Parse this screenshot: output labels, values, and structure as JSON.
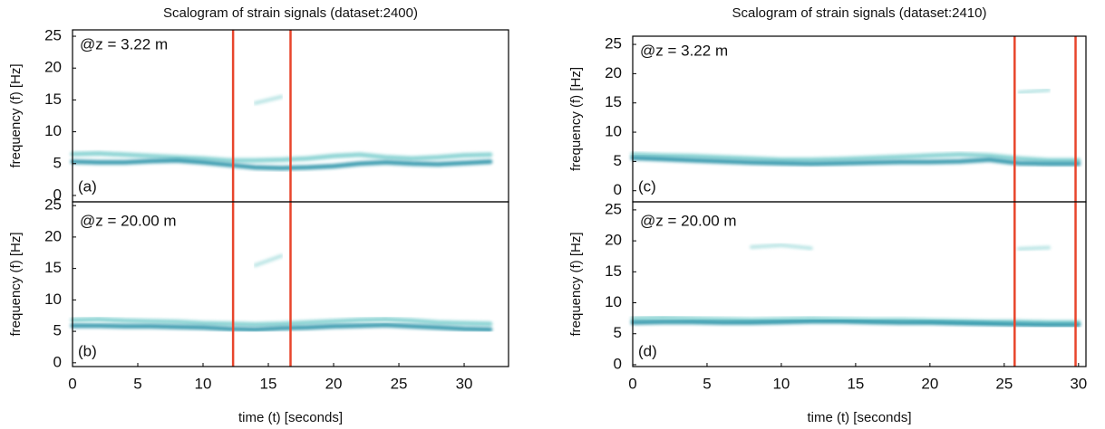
{
  "chart_data": [
    {
      "type": "line",
      "title": "Scalogram of strain signals (dataset:2400)",
      "annotation": "@z = 3.22 m",
      "panel_label": "(a)",
      "ylabel": "frequency (f) [Hz]",
      "x": [
        0,
        2,
        4,
        6,
        8,
        10,
        12,
        14,
        16,
        18,
        20,
        22,
        24,
        26,
        28,
        30,
        32
      ],
      "series": [
        {
          "color": "#7fcfcf",
          "values": [
            6.5,
            6.6,
            6.4,
            6.2,
            6.0,
            5.8,
            5.5,
            5.5,
            5.6,
            5.8,
            6.2,
            6.4,
            6.0,
            5.8,
            6.0,
            6.3,
            6.4
          ]
        },
        {
          "color": "#2a93a8",
          "values": [
            5.3,
            5.2,
            5.2,
            5.4,
            5.5,
            5.2,
            4.8,
            4.4,
            4.3,
            4.4,
            4.6,
            5.0,
            5.2,
            5.0,
            4.9,
            5.1,
            5.3
          ]
        },
        {
          "color": "#a8dede",
          "values": [
            null,
            null,
            null,
            null,
            null,
            null,
            null,
            14.5,
            15.5,
            null,
            null,
            null,
            null,
            null,
            null,
            null,
            null
          ]
        }
      ],
      "vlines": [
        12.3,
        16.7
      ],
      "vline_color": "#e8452c",
      "xlim": [
        0,
        33.4
      ],
      "ylim": [
        -1,
        26
      ],
      "yticks": [
        0,
        5,
        10,
        15,
        20,
        25
      ]
    },
    {
      "type": "line",
      "annotation": "@z = 20.00 m",
      "panel_label": "(b)",
      "ylabel": "frequency (f) [Hz]",
      "xlabel": "time (t) [seconds]",
      "x": [
        0,
        2,
        4,
        6,
        8,
        10,
        12,
        14,
        16,
        18,
        20,
        22,
        24,
        26,
        28,
        30,
        32
      ],
      "series": [
        {
          "color": "#7fcfcf",
          "values": [
            6.8,
            6.9,
            6.7,
            6.6,
            6.5,
            6.3,
            6.2,
            6.1,
            6.2,
            6.4,
            6.6,
            6.8,
            6.9,
            6.7,
            6.4,
            6.3,
            6.2
          ]
        },
        {
          "color": "#2a93a8",
          "values": [
            5.9,
            5.9,
            5.8,
            5.8,
            5.7,
            5.6,
            5.4,
            5.3,
            5.5,
            5.6,
            5.8,
            5.9,
            6.0,
            5.8,
            5.6,
            5.4,
            5.3
          ]
        },
        {
          "color": "#a8dede",
          "values": [
            null,
            null,
            null,
            null,
            null,
            null,
            null,
            15.5,
            17.0,
            null,
            null,
            null,
            null,
            null,
            null,
            null,
            null
          ]
        }
      ],
      "vlines": [
        12.3,
        16.7
      ],
      "vline_color": "#e8452c",
      "xlim": [
        0,
        33.4
      ],
      "ylim": [
        -0.6,
        25.6
      ],
      "xticks": [
        0,
        5,
        10,
        15,
        20,
        25,
        30
      ],
      "yticks": [
        0,
        5,
        10,
        15,
        20,
        25
      ]
    },
    {
      "type": "line",
      "title": "Scalogram of strain signals (dataset:2410)",
      "annotation": "@z = 3.22 m",
      "panel_label": "(c)",
      "ylabel": "frequency (f) [Hz]",
      "x": [
        0,
        2,
        4,
        6,
        8,
        10,
        12,
        14,
        16,
        18,
        20,
        22,
        24,
        26,
        28,
        30
      ],
      "series": [
        {
          "color": "#7fcfcf",
          "values": [
            6.2,
            6.0,
            5.9,
            5.7,
            5.5,
            5.3,
            5.3,
            5.4,
            5.6,
            5.8,
            6.0,
            6.2,
            6.0,
            5.5,
            5.2,
            5.2
          ]
        },
        {
          "color": "#2a93a8",
          "values": [
            5.6,
            5.4,
            5.2,
            5.0,
            4.8,
            4.7,
            4.6,
            4.7,
            4.8,
            4.9,
            4.9,
            5.0,
            5.3,
            4.7,
            4.6,
            4.6
          ]
        },
        {
          "color": "#a8dede",
          "values": [
            null,
            null,
            null,
            null,
            null,
            null,
            null,
            null,
            null,
            null,
            null,
            null,
            null,
            16.8,
            17.2,
            null
          ]
        }
      ],
      "vlines": [
        25.7,
        29.8
      ],
      "vline_color": "#e8452c",
      "xlim": [
        0,
        30.5
      ],
      "ylim": [
        -1.9,
        26.4
      ],
      "yticks": [
        0,
        5,
        10,
        15,
        20,
        25
      ]
    },
    {
      "type": "line",
      "annotation": "@z = 20.00 m",
      "panel_label": "(d)",
      "ylabel": "frequency (f) [Hz]",
      "xlabel": "time (t) [seconds]",
      "x": [
        0,
        2,
        4,
        6,
        8,
        10,
        12,
        14,
        16,
        18,
        20,
        22,
        24,
        26,
        28,
        30
      ],
      "series": [
        {
          "color": "#7fcfcf",
          "values": [
            7.4,
            7.5,
            7.4,
            7.3,
            7.2,
            7.3,
            7.4,
            7.3,
            7.2,
            7.2,
            7.1,
            7.0,
            6.9,
            6.9,
            6.8,
            6.8
          ]
        },
        {
          "color": "#2a93a8",
          "values": [
            6.8,
            6.9,
            6.9,
            6.8,
            6.8,
            6.9,
            7.0,
            7.0,
            6.9,
            6.8,
            6.8,
            6.7,
            6.6,
            6.5,
            6.4,
            6.4
          ]
        },
        {
          "color": "#a8dede",
          "values": [
            null,
            null,
            null,
            null,
            19.0,
            19.3,
            18.8,
            null,
            null,
            null,
            null,
            null,
            null,
            18.7,
            18.9,
            null
          ]
        }
      ],
      "vlines": [
        25.7,
        29.8
      ],
      "vline_color": "#e8452c",
      "xlim": [
        0,
        30.5
      ],
      "ylim": [
        -0.3,
        26.3
      ],
      "xticks": [
        0,
        5,
        10,
        15,
        20,
        25,
        30
      ],
      "yticks": [
        0,
        5,
        10,
        15,
        20,
        25
      ]
    }
  ]
}
